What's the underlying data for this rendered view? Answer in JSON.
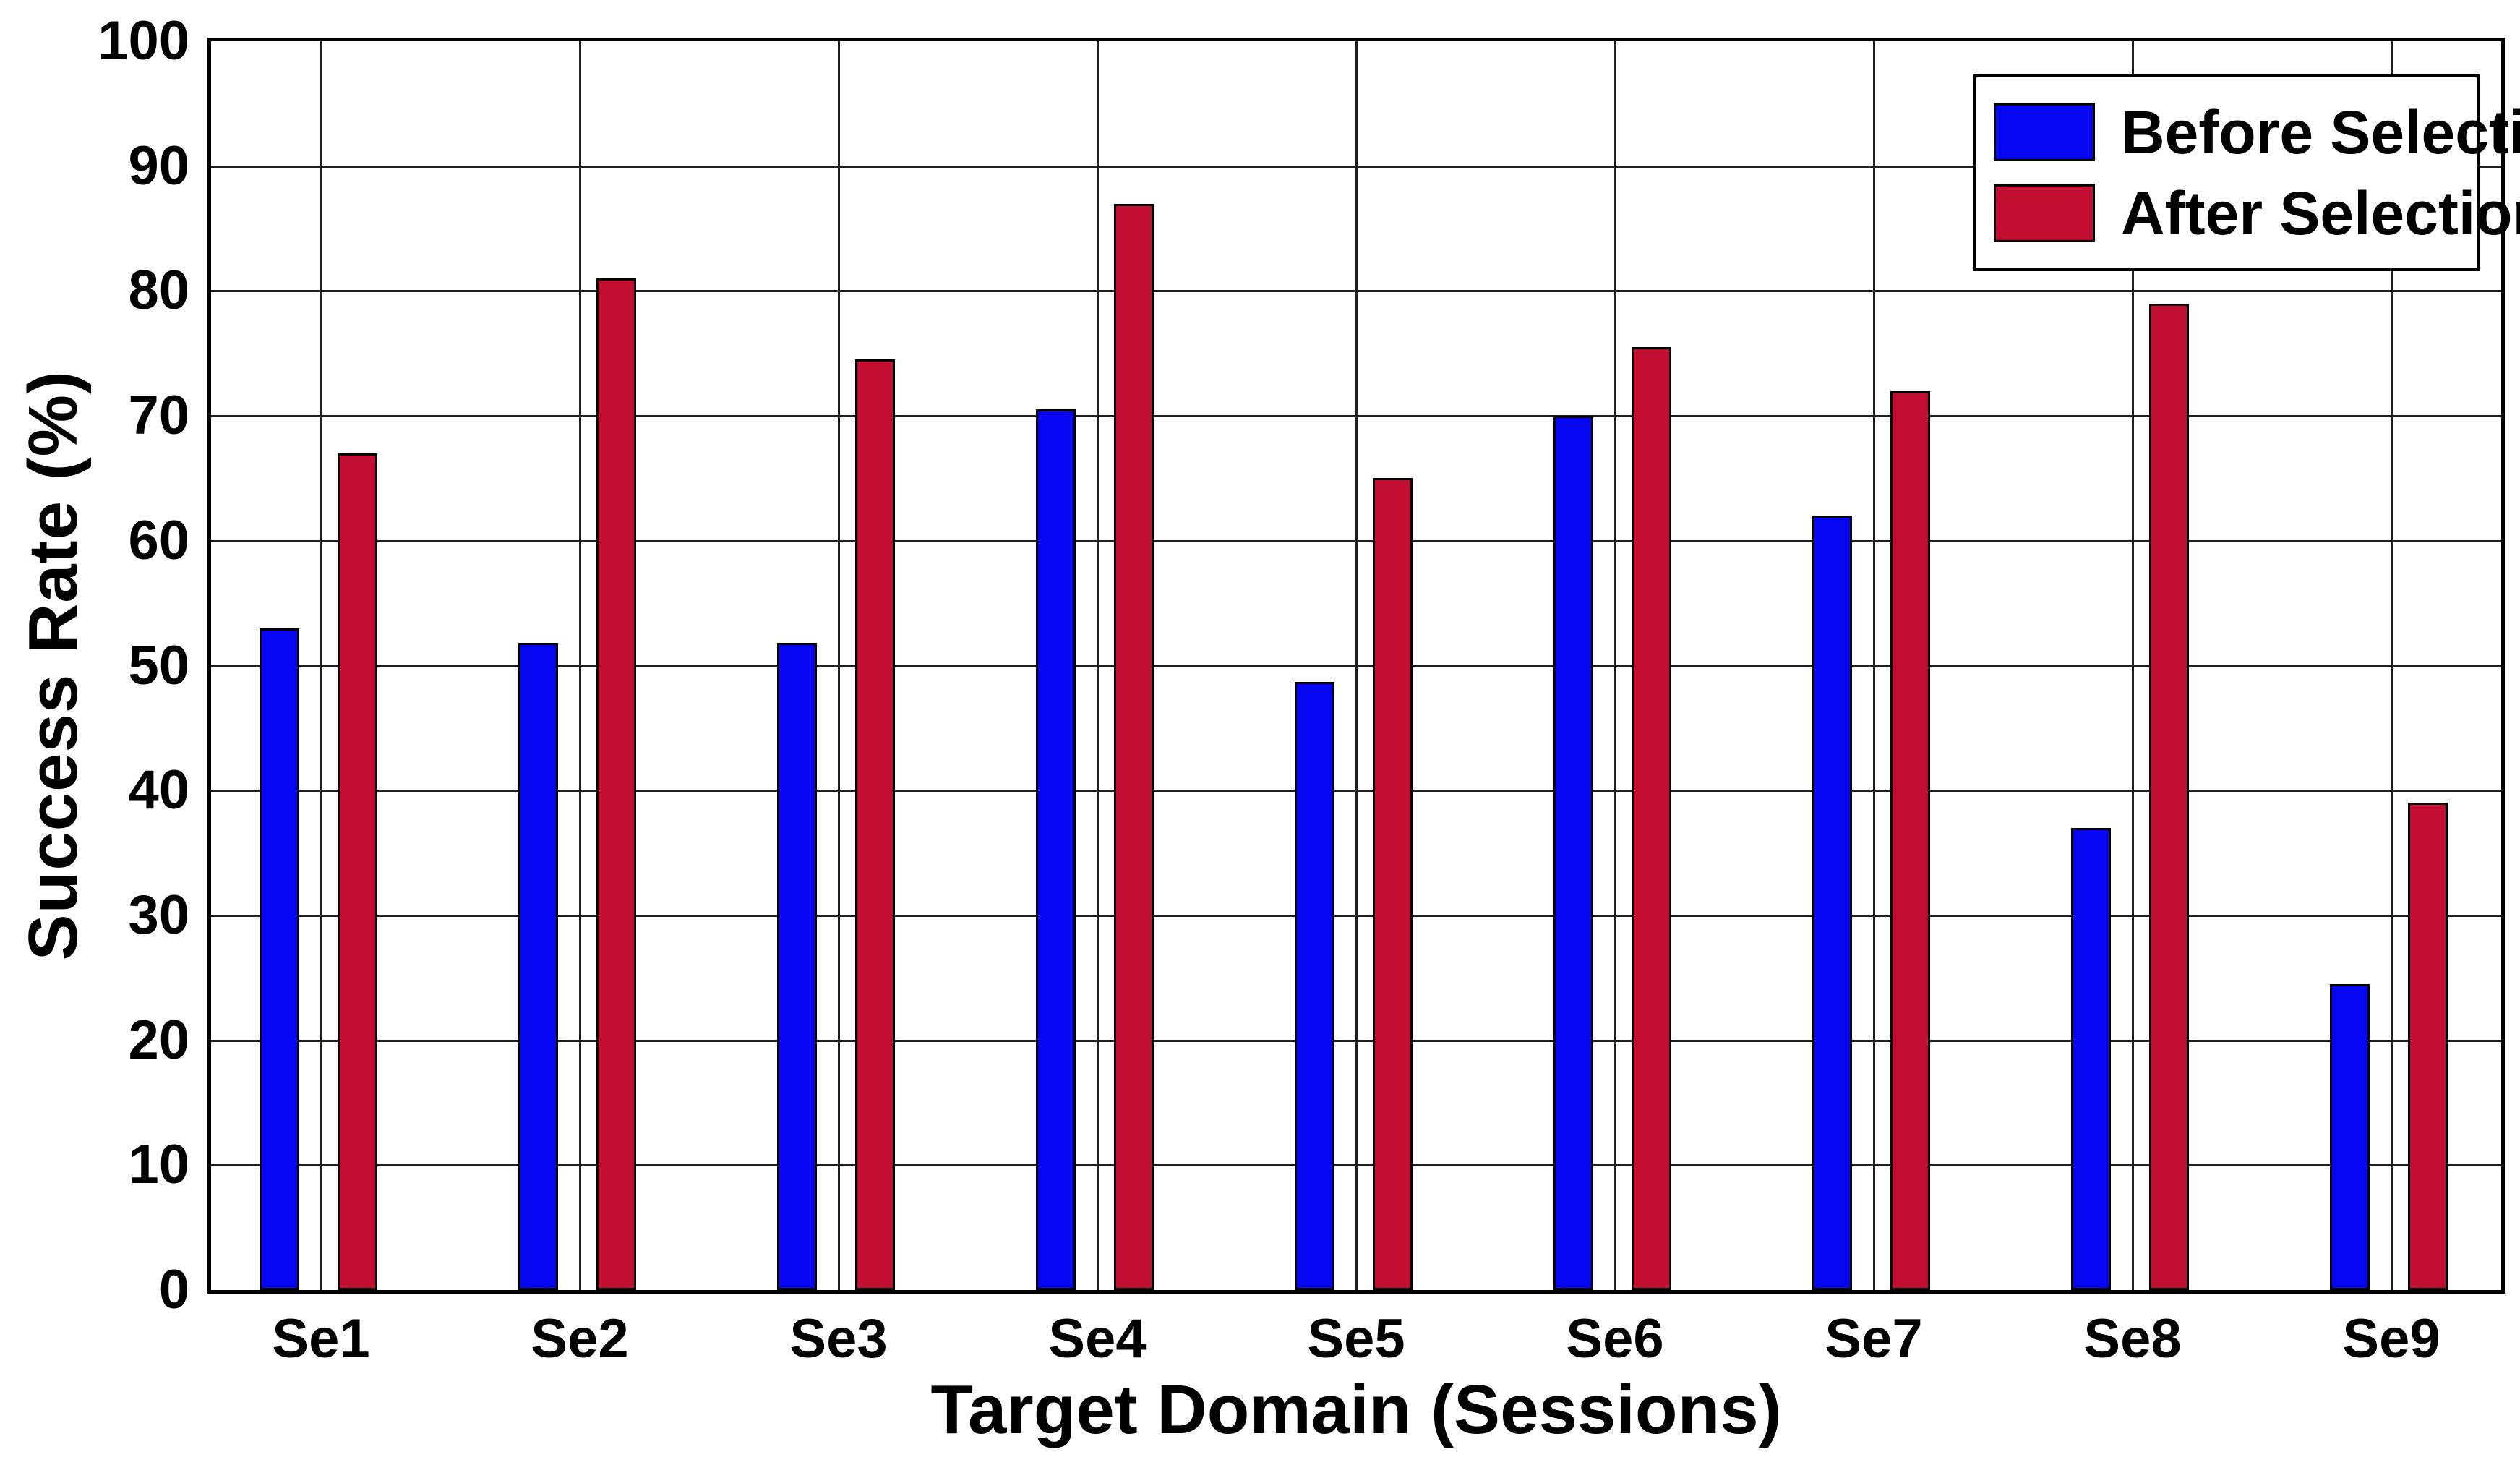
{
  "chart_data": {
    "type": "bar",
    "title": "",
    "xlabel": "Target Domain (Sessions)",
    "ylabel": "Success Rate (%)",
    "categories": [
      "Se1",
      "Se2",
      "Se3",
      "Se4",
      "Se5",
      "Se6",
      "Se7",
      "Se8",
      "Se9"
    ],
    "series": [
      {
        "name": "Before Selection",
        "color": "#0606F0",
        "values": [
          53,
          51.8,
          51.8,
          70.5,
          48.7,
          70,
          62,
          37,
          24.5
        ]
      },
      {
        "name": "After Selection",
        "color": "#C20E30",
        "values": [
          67,
          81,
          74.5,
          87,
          65,
          75.5,
          72,
          79,
          39
        ]
      }
    ],
    "ylim": [
      0,
      100
    ],
    "yticks": [
      0,
      10,
      20,
      30,
      40,
      50,
      60,
      70,
      80,
      90,
      100
    ],
    "grid": "on",
    "legend_position": "top-right"
  }
}
